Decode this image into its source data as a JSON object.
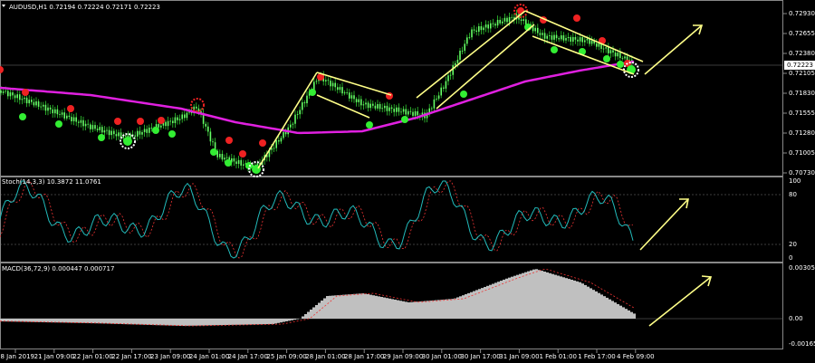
{
  "panels": [
    {
      "header": "AUDUSD,H1  0.72194 0.72224 0.72171 0.72223",
      "price_labels": [
        "0.72930",
        "0.72655",
        "0.72380",
        "0.72105",
        "0.71830",
        "0.71555",
        "0.71280",
        "0.71005",
        "0.70730"
      ],
      "current_price": "0.72223"
    },
    {
      "header": "Stoch(14,3,3) 10.3872 11.0761",
      "levels": [
        "100",
        "80",
        "20",
        "0"
      ]
    },
    {
      "header": "MACD(36,72,9) 0.000447 0.000717",
      "levels": [
        "0.00305",
        "0.00",
        "-0.00165"
      ]
    }
  ],
  "time_labels": [
    "18 Jan 2019",
    "21 Jan 09:00",
    "22 Jan 01:00",
    "22 Jan 17:00",
    "23 Jan 09:00",
    "24 Jan 01:00",
    "24 Jan 17:00",
    "25 Jan 09:00",
    "28 Jan 01:00",
    "28 Jan 17:00",
    "29 Jan 09:00",
    "30 Jan 01:00",
    "30 Jan 17:00",
    "31 Jan 09:00",
    "1 Feb 01:00",
    "1 Feb 17:00",
    "4 Feb 09:00"
  ]
}
